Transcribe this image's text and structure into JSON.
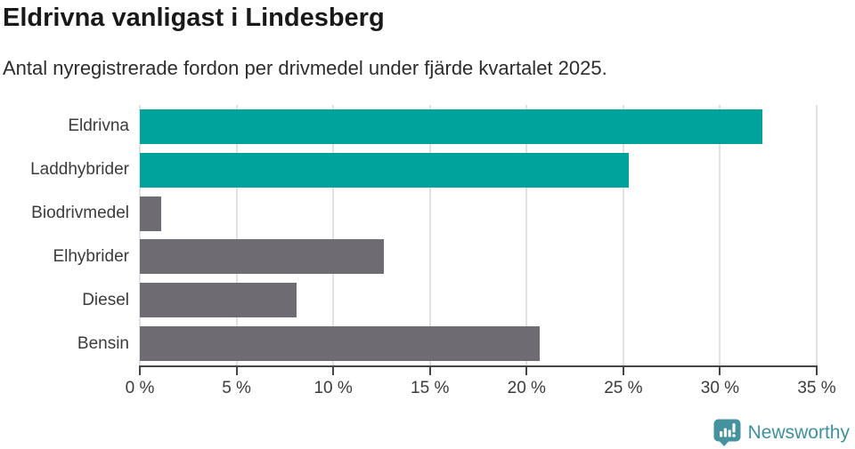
{
  "header": {
    "title": "Eldrivna vanligast i Lindesberg",
    "subtitle": "Antal nyregistrerade fordon per drivmedel under fjärde kvartalet 2025."
  },
  "chart_data": {
    "type": "bar",
    "orientation": "horizontal",
    "title": "Eldrivna vanligast i Lindesberg",
    "subtitle": "Antal nyregistrerade fordon per drivmedel under fjärde kvartalet 2025.",
    "categories": [
      "Eldrivna",
      "Laddhybrider",
      "Biodrivmedel",
      "Elhybrider",
      "Diesel",
      "Bensin"
    ],
    "values": [
      32.2,
      25.3,
      1.1,
      12.6,
      8.1,
      20.7
    ],
    "unit": "%",
    "series_colors": [
      "#00a39b",
      "#00a39b",
      "#6e6b72",
      "#6e6b72",
      "#6e6b72",
      "#6e6b72"
    ],
    "highlight_color": "#00a39b",
    "default_color": "#6e6b72",
    "xlabel": "",
    "ylabel": "",
    "xlim": [
      0,
      35
    ],
    "x_ticks": [
      0,
      5,
      10,
      15,
      20,
      25,
      30,
      35
    ],
    "x_tick_labels": [
      "0 %",
      "5 %",
      "10 %",
      "15 %",
      "20 %",
      "25 %",
      "30 %",
      "35 %"
    ],
    "grid": "vertical",
    "gridline_color": "#e2e2e2",
    "axis_color": "#454545",
    "legend": "none"
  },
  "footer": {
    "brand": "Newsworthy",
    "brand_color": "#3f909c",
    "logo_icon": "newsworthy-speech-bubble-bar-chart-icon"
  }
}
